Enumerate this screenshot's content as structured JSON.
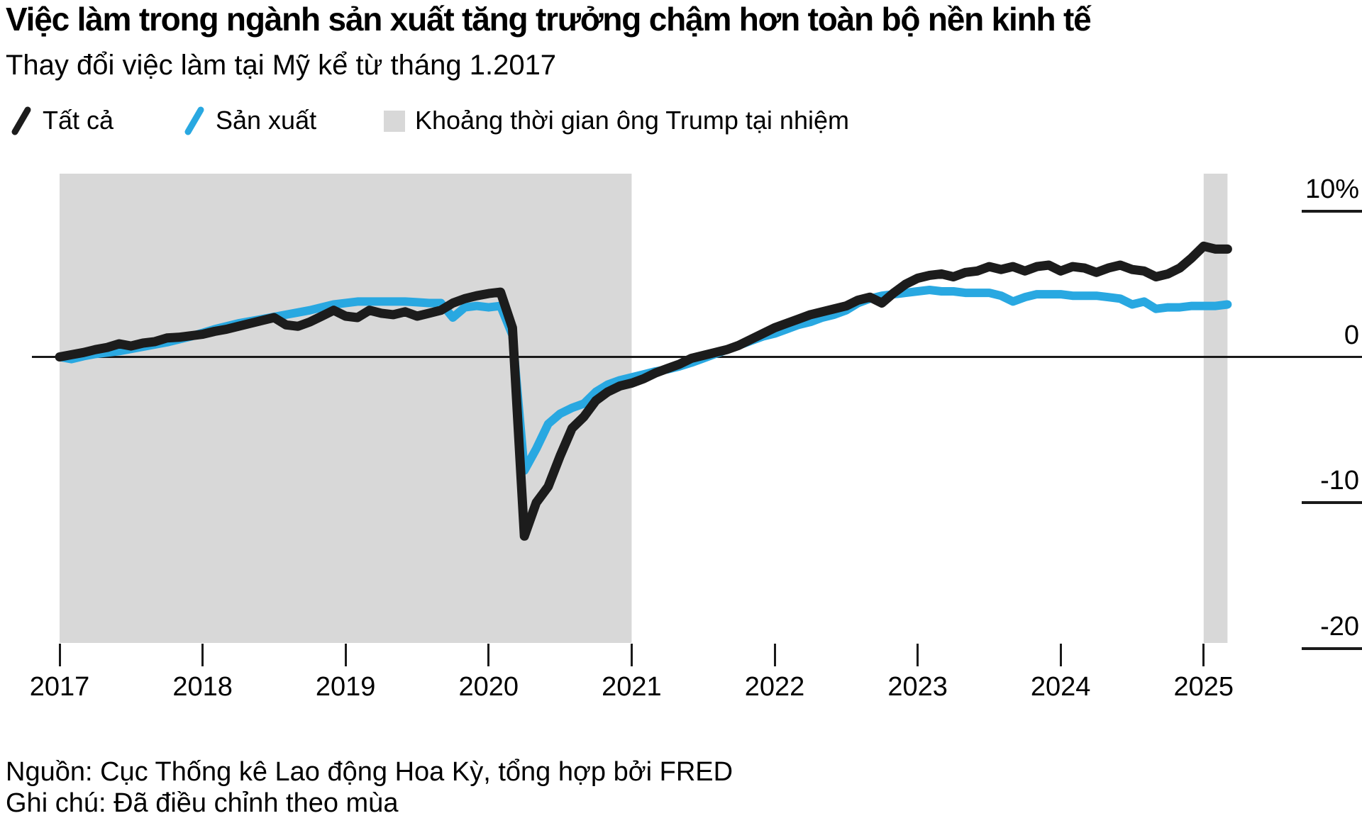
{
  "header": {
    "title": "Việc làm trong ngành sản xuất tăng trưởng chậm hơn toàn bộ nền kinh tế",
    "subtitle": "Thay đổi việc làm tại Mỹ kể từ tháng 1.2017"
  },
  "legend": {
    "items": [
      {
        "key": "all",
        "label": "Tất cả",
        "swatch": "line-slash-icon",
        "color": "#1c1c1c"
      },
      {
        "key": "manufacturing",
        "label": "Sản xuất",
        "swatch": "line-slash-icon",
        "color": "#29a8e1"
      },
      {
        "key": "trump-term",
        "label": "Khoảng thời gian ông Trump tại nhiệm",
        "swatch": "square-icon",
        "color": "#d8d8d8"
      }
    ]
  },
  "colors": {
    "all": "#1c1c1c",
    "manufacturing": "#29a8e1",
    "band": "#d8d8d8",
    "axis": "#1a1a1a"
  },
  "chart_data": {
    "type": "line",
    "title": "Việc làm trong ngành sản xuất tăng trưởng chậm hơn toàn bộ nền kinh tế",
    "subtitle": "Thay đổi việc làm tại Mỹ kể từ tháng 1.2017",
    "unit": "percent change since 2017-01",
    "frequency": "monthly",
    "start": "2017-01",
    "end": "2025-03",
    "grid": "off",
    "legend_position": "top",
    "x_axis": {
      "years": [
        2017,
        2018,
        2019,
        2020,
        2021,
        2022,
        2023,
        2024,
        2025
      ]
    },
    "y_axis": {
      "ticks": [
        {
          "label": "10%",
          "value": 10
        },
        {
          "label": "0",
          "value": 0
        },
        {
          "label": "-10",
          "value": -10
        },
        {
          "label": "-20",
          "value": -20
        }
      ],
      "range": [
        -21,
        11
      ]
    },
    "bands": [
      {
        "label": "Khoảng thời gian ông Trump tại nhiệm",
        "from": "2017-01",
        "to": "2021-01"
      },
      {
        "label": "Khoảng thời gian ông Trump tại nhiệm",
        "from": "2025-01",
        "to": "2025-03"
      }
    ],
    "series": [
      {
        "key": "all",
        "name": "Tất cả",
        "color": "#1c1c1c",
        "values": [
          0,
          0.15,
          0.3,
          0.5,
          0.65,
          0.9,
          0.75,
          0.95,
          1.05,
          1.3,
          1.35,
          1.45,
          1.55,
          1.75,
          1.9,
          2.1,
          2.3,
          2.5,
          2.7,
          2.2,
          2.1,
          2.4,
          2.8,
          3.2,
          2.8,
          2.7,
          3.2,
          3.0,
          2.9,
          3.1,
          2.8,
          3.0,
          3.2,
          3.7,
          4.0,
          4.2,
          4.35,
          4.45,
          2.0,
          -12.3,
          -10.0,
          -8.9,
          -6.8,
          -4.9,
          -4.1,
          -3.0,
          -2.4,
          -2.0,
          -1.8,
          -1.5,
          -1.1,
          -0.8,
          -0.5,
          -0.1,
          0.1,
          0.3,
          0.5,
          0.8,
          1.2,
          1.6,
          2.0,
          2.3,
          2.6,
          2.9,
          3.1,
          3.3,
          3.5,
          3.9,
          4.1,
          3.7,
          4.4,
          5.0,
          5.4,
          5.6,
          5.7,
          5.5,
          5.8,
          5.9,
          6.2,
          6.0,
          6.2,
          5.9,
          6.2,
          6.3,
          5.9,
          6.2,
          6.1,
          5.8,
          6.1,
          6.3,
          6.0,
          5.9,
          5.5,
          5.7,
          6.1,
          6.8,
          7.6,
          7.4,
          7.4
        ]
      },
      {
        "key": "manufacturing",
        "name": "Sản xuất",
        "color": "#29a8e1",
        "values": [
          0,
          -0.15,
          0.05,
          0.2,
          0.3,
          0.4,
          0.55,
          0.7,
          0.85,
          1.0,
          1.2,
          1.4,
          1.65,
          1.9,
          2.1,
          2.3,
          2.45,
          2.6,
          2.75,
          2.9,
          3.05,
          3.2,
          3.4,
          3.6,
          3.7,
          3.8,
          3.8,
          3.8,
          3.8,
          3.8,
          3.75,
          3.7,
          3.7,
          2.7,
          3.4,
          3.5,
          3.4,
          3.5,
          1.5,
          -7.8,
          -6.3,
          -4.6,
          -3.9,
          -3.5,
          -3.2,
          -2.4,
          -1.9,
          -1.6,
          -1.4,
          -1.2,
          -1.0,
          -0.85,
          -0.65,
          -0.4,
          -0.1,
          0.2,
          0.5,
          0.8,
          1.1,
          1.4,
          1.6,
          1.9,
          2.2,
          2.4,
          2.7,
          2.9,
          3.2,
          3.7,
          4.0,
          4.2,
          4.3,
          4.4,
          4.5,
          4.6,
          4.5,
          4.5,
          4.4,
          4.4,
          4.4,
          4.2,
          3.8,
          4.1,
          4.3,
          4.3,
          4.3,
          4.2,
          4.2,
          4.2,
          4.1,
          4.0,
          3.6,
          3.8,
          3.3,
          3.4,
          3.4,
          3.5,
          3.5,
          3.5,
          3.6
        ]
      }
    ]
  },
  "footer": {
    "source": "Nguồn: Cục Thống kê Lao động Hoa Kỳ, tổng hợp bởi FRED",
    "note": "Ghi chú: Đã điều chỉnh theo mùa"
  }
}
